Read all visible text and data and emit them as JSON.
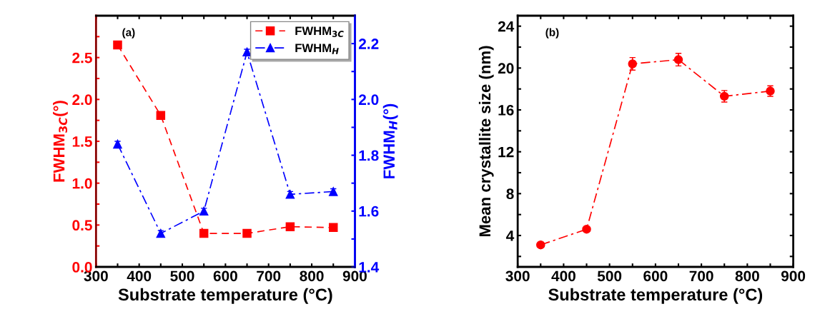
{
  "chart_data": [
    {
      "type": "line",
      "x": [
        350,
        450,
        550,
        650,
        750,
        850
      ],
      "xlabel": "Substrate temperature (°C)",
      "ylabel": "FWHM$_{3C}$(°)",
      "y2label": "FWHM$_{H}$(°)",
      "annotations": [
        "(a)"
      ],
      "xlim": [
        300,
        900
      ],
      "xticks": [
        300,
        {
          "value": 350,
          "label": null
        },
        400,
        {
          "value": 450,
          "label": null
        },
        500,
        {
          "value": 550,
          "label": null
        },
        600,
        {
          "value": 650,
          "label": null
        },
        700,
        {
          "value": 750,
          "label": null
        },
        800,
        {
          "value": 850,
          "label": null
        },
        900
      ],
      "ylim": [
        0,
        3
      ],
      "yticks": [
        {
          "value": 0,
          "label": "0.0"
        },
        {
          "value": 0.25,
          "label": null
        },
        0.5,
        {
          "value": 0.75,
          "label": null
        },
        {
          "value": 1,
          "label": "1.0"
        },
        {
          "value": 1.25,
          "label": null
        },
        1.5,
        {
          "value": 1.75,
          "label": null
        },
        {
          "value": 2,
          "label": "2.0"
        },
        {
          "value": 2.25,
          "label": null
        },
        2.5,
        {
          "value": 2.75,
          "label": null
        }
      ],
      "y2lim": [
        1.4,
        2.3
      ],
      "y2ticks": [
        1.4,
        {
          "value": 1.5,
          "label": null
        },
        1.6,
        {
          "value": 1.7,
          "label": null
        },
        1.8,
        {
          "value": 1.9,
          "label": null
        },
        {
          "value": 2,
          "label": "2.0"
        },
        {
          "value": 2.1,
          "label": null
        },
        2.2
      ],
      "legend": "top right",
      "grid": false,
      "series": [
        {
          "name": "FWHM$_{3C}$",
          "color": "#ff0000",
          "marker": "square",
          "line_style": "dashed",
          "values": [
            2.65,
            1.81,
            0.4,
            0.4,
            0.48,
            0.47
          ]
        },
        {
          "name": "FWHM$_{H}$",
          "color": "#0000ff",
          "marker": "triangle",
          "line_style": "dashdot",
          "axis": "y2",
          "values": [
            1.84,
            1.52,
            1.6,
            2.17,
            1.66,
            1.67
          ],
          "errors": [
            0.01,
            0.01,
            0.01,
            0.01,
            0.01,
            0.01
          ]
        }
      ]
    },
    {
      "type": "line",
      "x": [
        350,
        450,
        550,
        650,
        750,
        850
      ],
      "xlabel": "Substrate temperature (°C)",
      "ylabel": "Mean crystallite size (nm)",
      "annotations": [
        "(b)"
      ],
      "xlim": [
        300,
        900
      ],
      "xticks": [
        300,
        {
          "value": 350,
          "label": null
        },
        400,
        {
          "value": 450,
          "label": null
        },
        500,
        {
          "value": 550,
          "label": null
        },
        600,
        {
          "value": 650,
          "label": null
        },
        700,
        {
          "value": 750,
          "label": null
        },
        800,
        {
          "value": 850,
          "label": null
        },
        900
      ],
      "ylim": [
        1,
        25
      ],
      "yticks": [
        {
          "value": 2,
          "label": null
        },
        4,
        {
          "value": 6,
          "label": null
        },
        8,
        {
          "value": 10,
          "label": null
        },
        12,
        {
          "value": 14,
          "label": null
        },
        16,
        {
          "value": 18,
          "label": null
        },
        20,
        {
          "value": 22,
          "label": null
        },
        24
      ],
      "grid": false,
      "series": [
        {
          "color": "#ff0000",
          "marker": "circle",
          "line_style": "dashdot",
          "values": [
            3.1,
            4.6,
            20.4,
            20.8,
            17.3,
            17.8
          ],
          "errors": [
            null,
            null,
            0.6,
            0.6,
            0.55,
            0.5
          ]
        }
      ]
    }
  ]
}
